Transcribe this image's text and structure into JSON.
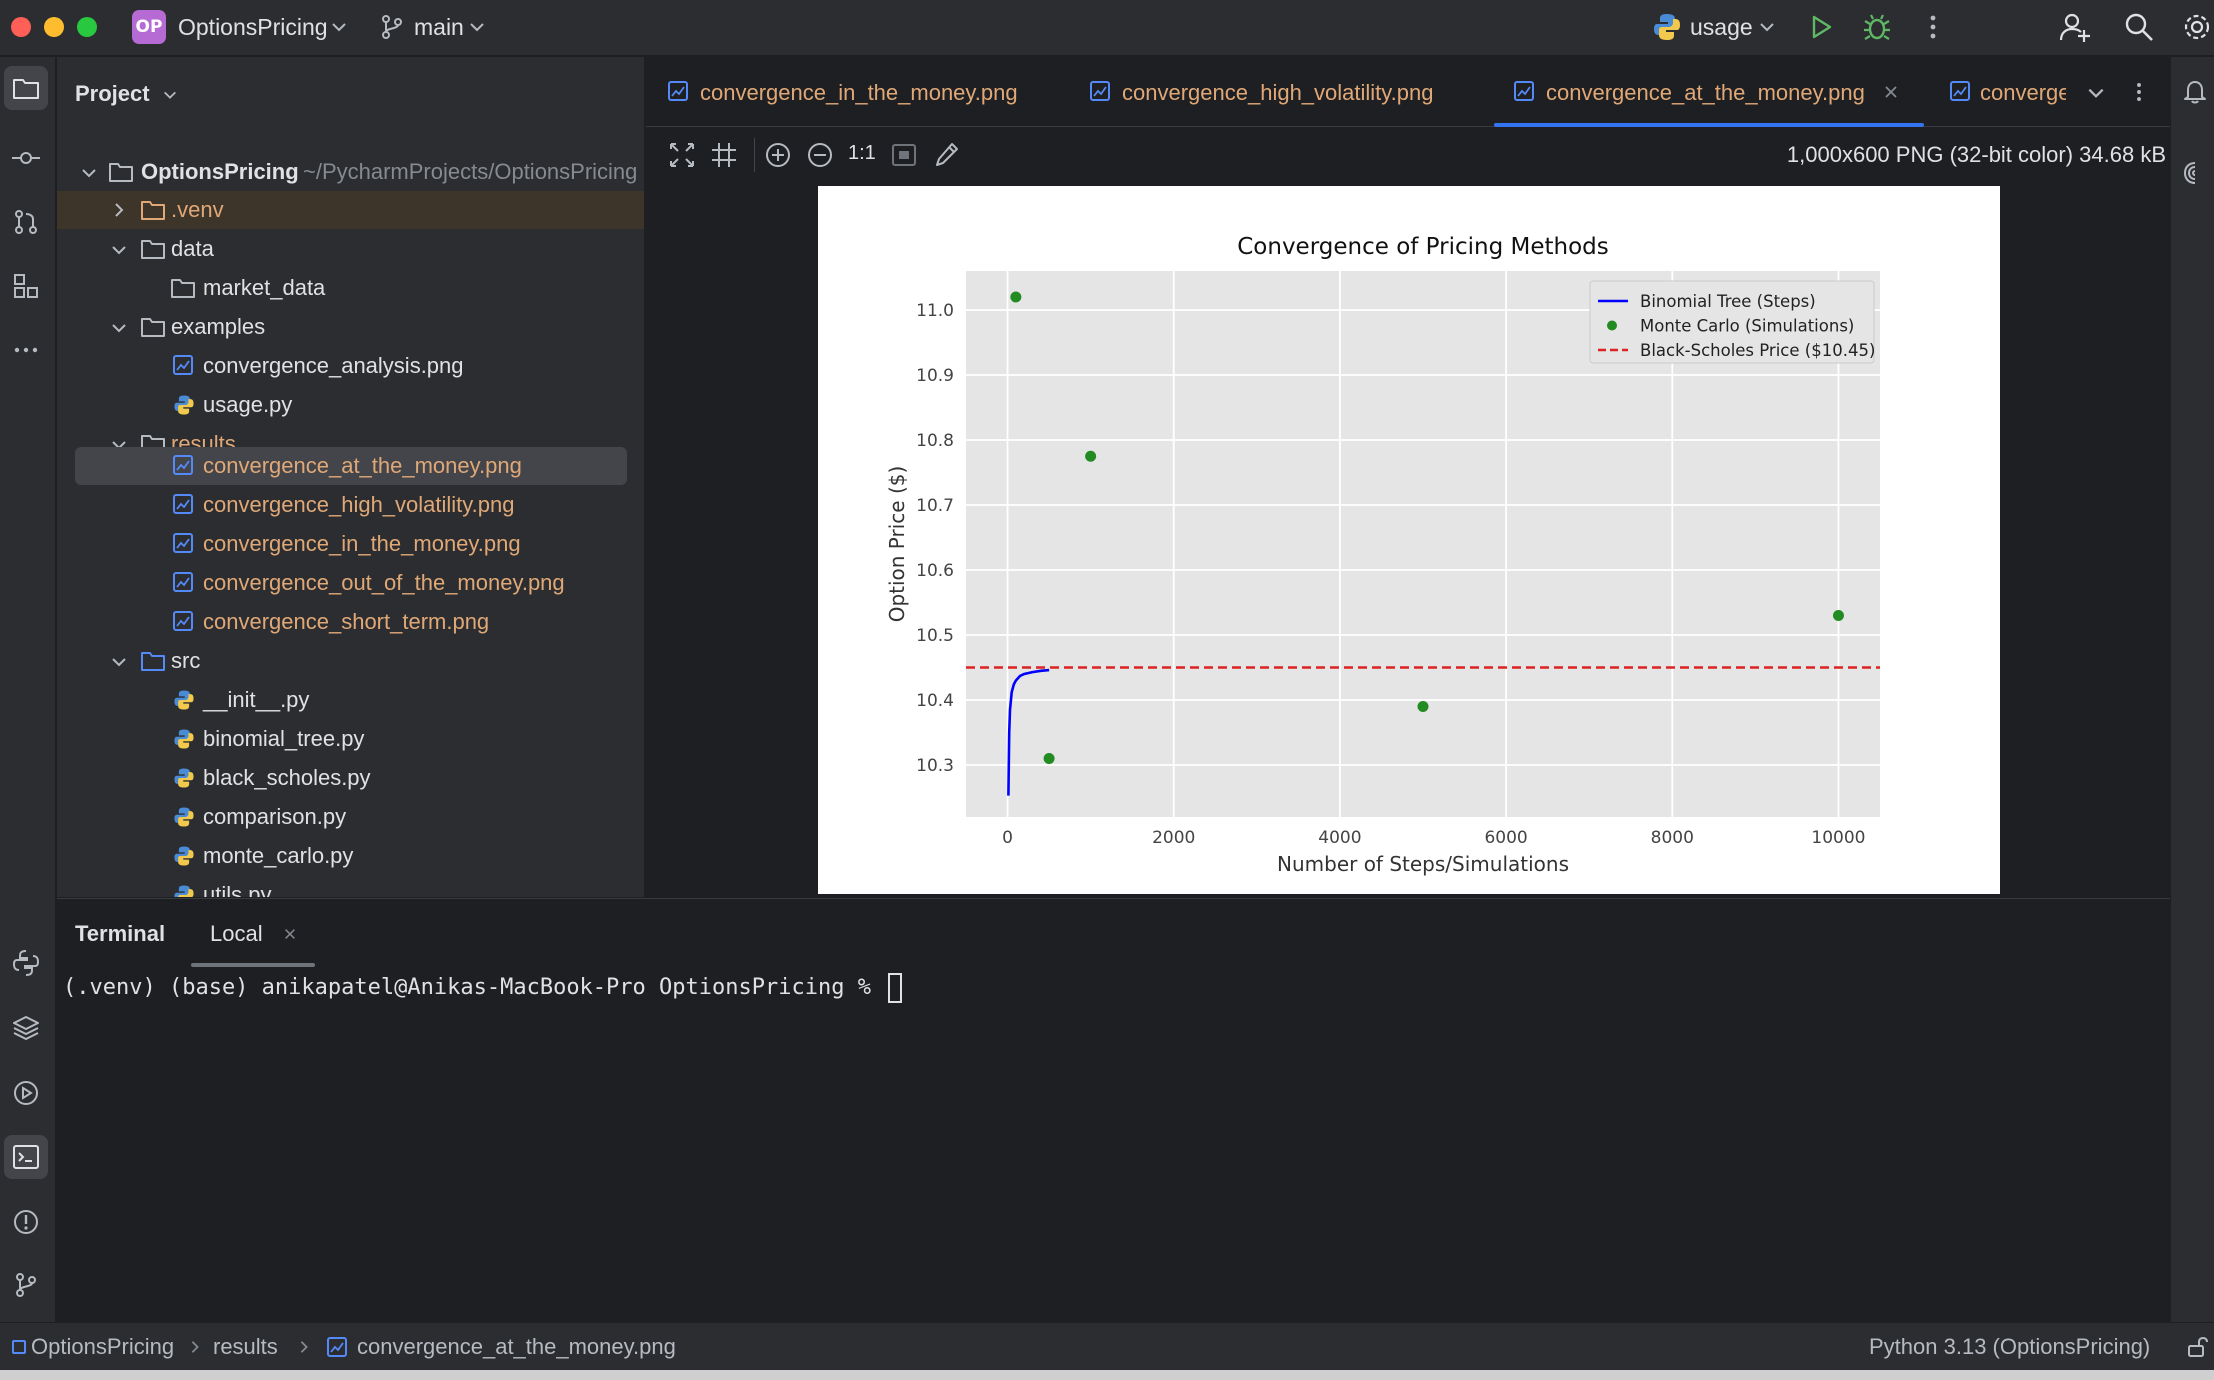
{
  "titlebar": {
    "project_badge": "OP",
    "project_name": "OptionsPricing",
    "branch": "main",
    "run_config": "usage"
  },
  "project_panel": {
    "title": "Project",
    "root_name": "OptionsPricing",
    "root_path": "~/PycharmProjects/OptionsPricing",
    "items": [
      {
        "label": "OptionsPricing",
        "depth": 0,
        "kind": "folder"
      },
      {
        "label": ".venv",
        "kind": "folder"
      },
      {
        "label": "data",
        "kind": "folder"
      },
      {
        "label": "market_data",
        "kind": "folder"
      },
      {
        "label": "examples",
        "kind": "folder"
      },
      {
        "label": "convergence_analysis.png",
        "kind": "image"
      },
      {
        "label": "usage.py",
        "kind": "python"
      },
      {
        "label": "results",
        "kind": "folder"
      },
      {
        "label": "convergence_at_the_money.png",
        "kind": "image"
      },
      {
        "label": "convergence_high_volatility.png",
        "kind": "image"
      },
      {
        "label": "convergence_in_the_money.png",
        "kind": "image"
      },
      {
        "label": "convergence_out_of_the_money.png",
        "kind": "image"
      },
      {
        "label": "convergence_short_term.png",
        "kind": "image"
      },
      {
        "label": "src",
        "kind": "folder"
      },
      {
        "label": "__init__.py",
        "kind": "python"
      },
      {
        "label": "binomial_tree.py",
        "kind": "python"
      },
      {
        "label": "black_scholes.py",
        "kind": "python"
      },
      {
        "label": "comparison.py",
        "kind": "python"
      },
      {
        "label": "monte_carlo.py",
        "kind": "python"
      },
      {
        "label": "utils.py",
        "kind": "python"
      }
    ]
  },
  "editor_tabs": [
    {
      "label": "convergence_in_the_money.png",
      "active": false
    },
    {
      "label": "convergence_high_volatility.png",
      "active": false
    },
    {
      "label": "convergence_at_the_money.png",
      "active": true
    },
    {
      "label": "converge",
      "active": false
    }
  ],
  "image_toolbar": {
    "actual_size_label": "1:1",
    "info": "1,000x600 PNG (32-bit color) 34.68 kB"
  },
  "chart_data": {
    "type": "line",
    "title": "Convergence of Pricing Methods",
    "xlabel": "Number of Steps/Simulations",
    "ylabel": "Option Price ($)",
    "xlim": [
      -500,
      10500
    ],
    "ylim": [
      10.22,
      11.06
    ],
    "x_ticks": [
      0,
      2000,
      4000,
      6000,
      8000,
      10000
    ],
    "y_ticks": [
      10.3,
      10.4,
      10.5,
      10.6,
      10.7,
      10.8,
      10.9,
      11.0
    ],
    "y_tick_labels": [
      "10.3",
      "10.4",
      "10.5",
      "10.6",
      "10.7",
      "10.8",
      "10.9",
      "11.0"
    ],
    "grid": true,
    "legend_position": "top-right",
    "series": [
      {
        "name": "Binomial Tree (Steps)",
        "style": "line",
        "color": "#0000ff",
        "x": [
          10,
          20,
          30,
          50,
          75,
          100,
          150,
          200,
          300,
          400,
          500
        ],
        "y": [
          10.253,
          10.35,
          10.385,
          10.412,
          10.424,
          10.43,
          10.437,
          10.44,
          10.443,
          10.445,
          10.446
        ]
      },
      {
        "name": "Monte Carlo (Simulations)",
        "style": "scatter",
        "color": "#228b22",
        "x": [
          100,
          500,
          1000,
          5000,
          10000
        ],
        "y": [
          11.02,
          10.31,
          10.775,
          10.39,
          10.53
        ]
      },
      {
        "name": "Black-Scholes Price ($10.45)",
        "style": "hline",
        "color": "#dd2222",
        "y": 10.45
      }
    ]
  },
  "terminal": {
    "tab_title": "Terminal",
    "session_tab": "Local",
    "prompt": "(.venv) (base) anikapatel@Anikas-MacBook-Pro OptionsPricing % "
  },
  "statusbar": {
    "breadcrumb_root": "OptionsPricing",
    "breadcrumb_folder": "results",
    "breadcrumb_file": "convergence_at_the_money.png",
    "interpreter": "Python 3.13 (OptionsPricing)"
  },
  "colors": {
    "accent": "#3574f0",
    "modified_file": "#e0a877",
    "badge": "#b56ad4"
  }
}
